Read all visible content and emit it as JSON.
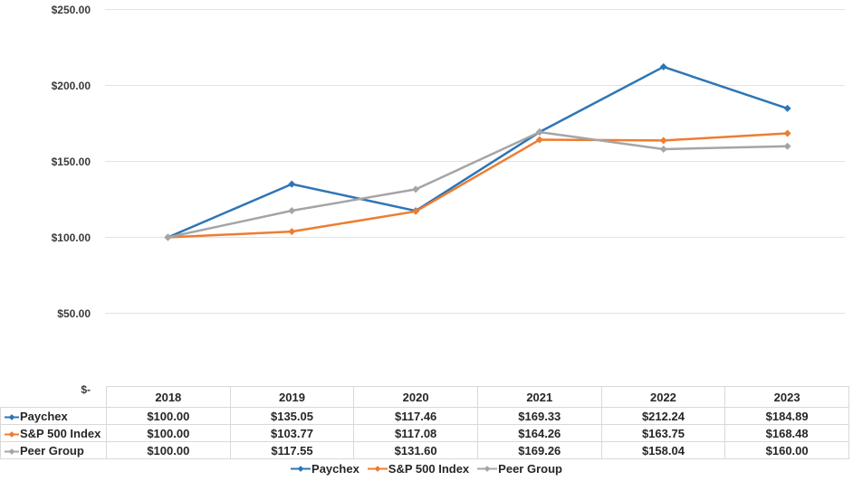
{
  "chart_data": {
    "type": "line",
    "title": "",
    "xlabel": "",
    "ylabel": "",
    "categories": [
      "2018",
      "2019",
      "2020",
      "2021",
      "2022",
      "2023"
    ],
    "series": [
      {
        "name": "Paychex",
        "color": "#2E75B6",
        "values": [
          100.0,
          135.05,
          117.46,
          169.33,
          212.24,
          184.89
        ]
      },
      {
        "name": "S&P 500 Index",
        "color": "#ED7D31",
        "values": [
          100.0,
          103.77,
          117.08,
          164.26,
          163.75,
          168.48
        ]
      },
      {
        "name": "Peer Group",
        "color": "#A5A5A5",
        "values": [
          100.0,
          117.55,
          131.6,
          169.26,
          158.04,
          160.0
        ]
      }
    ],
    "ylim": [
      0,
      250
    ],
    "y_ticks": [
      {
        "value": 250,
        "label": "$250.00"
      },
      {
        "value": 200,
        "label": "$200.00"
      },
      {
        "value": 150,
        "label": "$150.00"
      },
      {
        "value": 100,
        "label": "$100.00"
      },
      {
        "value": 50,
        "label": "$50.00"
      },
      {
        "value": 0,
        "label": "$-"
      }
    ],
    "grid": "horizontal",
    "legend_position": "bottom",
    "gridline_color": "#e2e2e2",
    "marker_shape": "diamond"
  },
  "table": {
    "columns": [
      "2018",
      "2019",
      "2020",
      "2021",
      "2022",
      "2023"
    ],
    "rows": [
      {
        "label": "Paychex",
        "color": "#2E75B6",
        "values": [
          "$100.00",
          "$135.05",
          "$117.46",
          "$169.33",
          "$212.24",
          "$184.89"
        ]
      },
      {
        "label": "S&P 500 Index",
        "color": "#ED7D31",
        "values": [
          "$100.00",
          "$103.77",
          "$117.08",
          "$164.26",
          "$163.75",
          "$168.48"
        ]
      },
      {
        "label": "Peer Group",
        "color": "#A5A5A5",
        "values": [
          "$100.00",
          "$117.55",
          "$131.60",
          "$169.26",
          "$158.04",
          "$160.00"
        ]
      }
    ]
  },
  "legend": {
    "items": [
      {
        "label": "Paychex",
        "color": "#2E75B6"
      },
      {
        "label": "S&P 500 Index",
        "color": "#ED7D31"
      },
      {
        "label": "Peer Group",
        "color": "#A5A5A5"
      }
    ]
  }
}
